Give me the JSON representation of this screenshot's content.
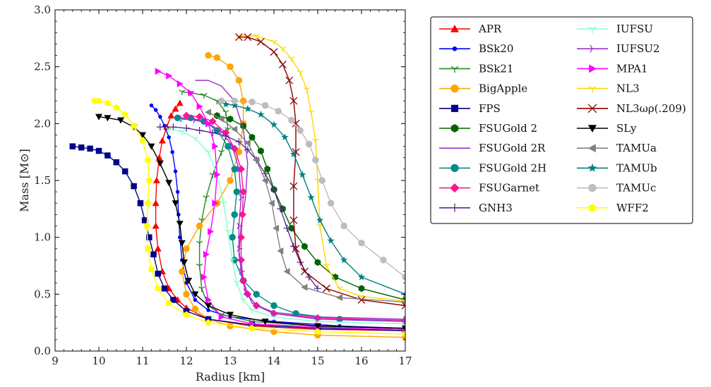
{
  "chart_data": {
    "type": "line",
    "title": "",
    "xlabel": "Radius [km]",
    "ylabel": "Mass [M⊙]",
    "xlim": [
      9,
      17
    ],
    "ylim": [
      0.0,
      3.0
    ],
    "xticks": [
      "9",
      "10",
      "11",
      "12",
      "13",
      "14",
      "15",
      "16",
      "17"
    ],
    "yticks": [
      "0.0",
      "0.5",
      "1.0",
      "1.5",
      "2.0",
      "2.5",
      "3.0"
    ],
    "legend_position": "outside-right",
    "series": [
      {
        "name": "APR",
        "color": "#ff0000",
        "marker": "triangle-up",
        "x": [
          17.0,
          15.0,
          13.5,
          12.5,
          12.0,
          11.8,
          11.6,
          11.45,
          11.35,
          11.3,
          11.3,
          11.32,
          11.38,
          11.45,
          11.55,
          11.65,
          11.75,
          11.85
        ],
        "y": [
          0.18,
          0.19,
          0.22,
          0.28,
          0.38,
          0.45,
          0.55,
          0.7,
          0.9,
          1.1,
          1.3,
          1.5,
          1.7,
          1.85,
          1.97,
          2.07,
          2.13,
          2.18
        ]
      },
      {
        "name": "BSk20",
        "color": "#0000ff",
        "marker": "circle-small",
        "x": [
          17.0,
          15.5,
          14.0,
          13.0,
          12.5,
          12.2,
          12.0,
          11.9,
          11.85,
          11.82,
          11.8,
          11.75,
          11.68,
          11.6,
          11.5,
          11.4,
          11.3,
          11.2
        ],
        "y": [
          0.2,
          0.22,
          0.26,
          0.3,
          0.36,
          0.45,
          0.6,
          0.8,
          1.0,
          1.2,
          1.4,
          1.58,
          1.75,
          1.88,
          1.98,
          2.06,
          2.12,
          2.16
        ]
      },
      {
        "name": "BSk21",
        "color": "#228b22",
        "marker": "tri-down",
        "x": [
          17.0,
          15.0,
          13.5,
          12.8,
          12.5,
          12.35,
          12.3,
          12.3,
          12.35,
          12.45,
          12.6,
          12.8,
          12.95,
          12.9,
          12.7,
          12.4,
          12.1,
          11.9
        ],
        "y": [
          0.2,
          0.22,
          0.26,
          0.32,
          0.4,
          0.55,
          0.75,
          0.95,
          1.15,
          1.35,
          1.55,
          1.75,
          1.95,
          2.1,
          2.2,
          2.25,
          2.27,
          2.28
        ]
      },
      {
        "name": "BigApple",
        "color": "#ffa500",
        "marker": "circle",
        "x": [
          17.0,
          15.0,
          14.0,
          13.0,
          12.5,
          12.2,
          12.0,
          11.9,
          12.0,
          12.3,
          12.7,
          13.0,
          13.2,
          13.3,
          13.3,
          13.2,
          13.0,
          12.7,
          12.5
        ],
        "y": [
          0.12,
          0.14,
          0.17,
          0.22,
          0.28,
          0.37,
          0.5,
          0.7,
          0.9,
          1.1,
          1.3,
          1.5,
          1.75,
          2.0,
          2.2,
          2.38,
          2.5,
          2.58,
          2.6
        ]
      },
      {
        "name": "FPS",
        "color": "#00008b",
        "marker": "square",
        "x": [
          17.0,
          15.0,
          13.5,
          12.5,
          12.0,
          11.7,
          11.5,
          11.35,
          11.25,
          11.15,
          11.05,
          10.95,
          10.8,
          10.6,
          10.4,
          10.2,
          10.0,
          9.8,
          9.6,
          9.4
        ],
        "y": [
          0.18,
          0.2,
          0.23,
          0.28,
          0.35,
          0.45,
          0.55,
          0.68,
          0.85,
          1.0,
          1.15,
          1.3,
          1.45,
          1.58,
          1.66,
          1.72,
          1.76,
          1.78,
          1.79,
          1.8
        ]
      },
      {
        "name": "FSUGold 2",
        "color": "#006400",
        "marker": "hexagon",
        "x": [
          17.0,
          16.0,
          15.4,
          15.0,
          14.7,
          14.4,
          14.2,
          14.0,
          13.85,
          13.7,
          13.5,
          13.3,
          13.0,
          12.7
        ],
        "y": [
          0.45,
          0.55,
          0.65,
          0.78,
          0.92,
          1.08,
          1.25,
          1.42,
          1.6,
          1.76,
          1.88,
          1.98,
          2.04,
          2.07
        ]
      },
      {
        "name": "FSUGold 2R",
        "color": "#9933cc",
        "marker": "none",
        "x": [
          17.0,
          15.0,
          14.0,
          13.5,
          13.3,
          13.2,
          13.25,
          13.35,
          13.4,
          13.3,
          13.1,
          12.8,
          12.5,
          12.2
        ],
        "y": [
          0.28,
          0.3,
          0.34,
          0.42,
          0.6,
          0.85,
          1.1,
          1.35,
          1.65,
          1.95,
          2.2,
          2.33,
          2.38,
          2.38
        ]
      },
      {
        "name": "FSUGold 2H",
        "color": "#008b8b",
        "marker": "circle",
        "x": [
          17.0,
          15.5,
          14.5,
          14.0,
          13.6,
          13.3,
          13.1,
          13.05,
          13.1,
          13.15,
          13.1,
          12.95,
          12.7,
          12.4,
          12.1,
          11.8
        ],
        "y": [
          0.26,
          0.28,
          0.33,
          0.4,
          0.5,
          0.62,
          0.8,
          1.0,
          1.2,
          1.4,
          1.6,
          1.8,
          1.94,
          2.02,
          2.05,
          2.05
        ]
      },
      {
        "name": "FSUGarnet",
        "color": "#ff1493",
        "marker": "diamond",
        "x": [
          17.0,
          15.0,
          14.0,
          13.6,
          13.4,
          13.3,
          13.25,
          13.25,
          13.28,
          13.3,
          13.25,
          13.1,
          12.9,
          12.6,
          12.3,
          12.0
        ],
        "y": [
          0.27,
          0.29,
          0.33,
          0.4,
          0.5,
          0.62,
          0.8,
          1.0,
          1.2,
          1.4,
          1.6,
          1.78,
          1.92,
          2.02,
          2.06,
          2.07
        ]
      },
      {
        "name": "GNH3",
        "color": "#5b2c8f",
        "marker": "plus",
        "x": [
          15.0,
          14.8,
          14.6,
          14.45,
          14.3,
          14.15,
          14.0,
          13.8,
          13.6,
          13.4,
          13.2,
          12.9,
          12.6,
          12.3,
          12.0,
          11.7,
          11.4
        ],
        "y": [
          0.55,
          0.65,
          0.78,
          0.92,
          1.08,
          1.25,
          1.42,
          1.56,
          1.68,
          1.77,
          1.84,
          1.89,
          1.92,
          1.94,
          1.96,
          1.97,
          1.97
        ]
      },
      {
        "name": "IUFSU",
        "color": "#7fffd4",
        "marker": "tri-down",
        "x": [
          17.0,
          15.0,
          14.0,
          13.5,
          13.3,
          13.15,
          13.05,
          12.95,
          12.85,
          12.7,
          12.5,
          12.2,
          11.9,
          11.6
        ],
        "y": [
          0.24,
          0.26,
          0.3,
          0.36,
          0.45,
          0.6,
          0.8,
          1.05,
          1.3,
          1.55,
          1.75,
          1.87,
          1.93,
          1.95
        ]
      },
      {
        "name": "IUFSU2",
        "color": "#9932cc",
        "marker": "tri-right",
        "x": [
          17.0,
          15.0,
          14.0,
          13.6,
          13.35,
          13.25,
          13.2,
          13.2,
          13.25,
          13.2,
          13.05,
          12.8,
          12.5,
          12.2,
          11.9
        ],
        "y": [
          0.26,
          0.28,
          0.33,
          0.4,
          0.52,
          0.7,
          0.9,
          1.1,
          1.35,
          1.6,
          1.8,
          1.93,
          2.0,
          2.03,
          2.04
        ]
      },
      {
        "name": "MPA1",
        "color": "#ff00ff",
        "marker": "triangle-right",
        "x": [
          17.0,
          15.0,
          13.5,
          12.8,
          12.5,
          12.4,
          12.45,
          12.55,
          12.65,
          12.7,
          12.65,
          12.5,
          12.3,
          12.1,
          11.85,
          11.6,
          11.35
        ],
        "y": [
          0.19,
          0.21,
          0.24,
          0.3,
          0.45,
          0.65,
          0.85,
          1.05,
          1.3,
          1.55,
          1.8,
          2.0,
          2.15,
          2.27,
          2.35,
          2.42,
          2.46
        ]
      },
      {
        "name": "NL3",
        "color": "#ffd700",
        "marker": "tri-down",
        "x": [
          17.0,
          16.0,
          15.5,
          15.2,
          15.05,
          15.0,
          14.95,
          14.85,
          14.75,
          14.6,
          14.4,
          14.2,
          14.0,
          13.6,
          13.2
        ],
        "y": [
          0.44,
          0.48,
          0.55,
          0.75,
          1.1,
          1.5,
          1.85,
          2.1,
          2.3,
          2.45,
          2.57,
          2.66,
          2.72,
          2.77,
          2.77
        ]
      },
      {
        "name": "NL3ωρ(.209)",
        "color": "#8b0000",
        "marker": "x",
        "x": [
          17.0,
          16.0,
          15.2,
          14.7,
          14.5,
          14.45,
          14.45,
          14.5,
          14.5,
          14.45,
          14.35,
          14.2,
          14.0,
          13.7,
          13.4,
          13.2
        ],
        "y": [
          0.4,
          0.45,
          0.55,
          0.7,
          0.9,
          1.15,
          1.45,
          1.75,
          2.0,
          2.2,
          2.38,
          2.52,
          2.63,
          2.72,
          2.76,
          2.76
        ]
      },
      {
        "name": "SLy",
        "color": "#000000",
        "marker": "triangle-down",
        "x": [
          17.0,
          15.0,
          13.8,
          13.0,
          12.5,
          12.2,
          12.05,
          11.95,
          11.9,
          11.85,
          11.75,
          11.6,
          11.4,
          11.2,
          11.0,
          10.8,
          10.5,
          10.2,
          10.0
        ],
        "y": [
          0.2,
          0.22,
          0.26,
          0.32,
          0.4,
          0.5,
          0.62,
          0.78,
          0.95,
          1.12,
          1.3,
          1.48,
          1.65,
          1.8,
          1.9,
          1.97,
          2.03,
          2.05,
          2.06
        ]
      },
      {
        "name": "TAMUa",
        "color": "#808080",
        "marker": "triangle-left",
        "x": [
          17.0,
          15.5,
          14.7,
          14.3,
          14.15,
          14.05,
          13.95,
          13.8,
          13.6,
          13.4,
          13.1,
          12.8,
          12.5
        ],
        "y": [
          0.43,
          0.47,
          0.56,
          0.7,
          0.88,
          1.08,
          1.3,
          1.5,
          1.68,
          1.83,
          1.95,
          2.04,
          2.1
        ]
      },
      {
        "name": "TAMUb",
        "color": "#008080",
        "marker": "star",
        "x": [
          17.0,
          16.0,
          15.6,
          15.3,
          15.05,
          14.85,
          14.65,
          14.45,
          14.25,
          14.0,
          13.7,
          13.4,
          13.1,
          12.9
        ],
        "y": [
          0.5,
          0.65,
          0.8,
          0.97,
          1.15,
          1.35,
          1.55,
          1.73,
          1.88,
          1.99,
          2.08,
          2.13,
          2.16,
          2.17
        ]
      },
      {
        "name": "TAMUc",
        "color": "#bdbdbd",
        "marker": "circle",
        "x": [
          17.0,
          16.5,
          16.0,
          15.6,
          15.3,
          15.1,
          14.95,
          14.8,
          14.6,
          14.4,
          14.1,
          13.8,
          13.5,
          13.1,
          12.8
        ],
        "y": [
          0.65,
          0.8,
          0.95,
          1.1,
          1.3,
          1.5,
          1.68,
          1.82,
          1.94,
          2.03,
          2.11,
          2.16,
          2.19,
          2.2,
          2.2
        ]
      },
      {
        "name": "WFF2",
        "color": "#ffff00",
        "marker": "pentagon",
        "x": [
          17.0,
          15.0,
          13.5,
          12.5,
          12.0,
          11.6,
          11.35,
          11.2,
          11.12,
          11.1,
          11.12,
          11.15,
          11.12,
          11.0,
          10.8,
          10.6,
          10.4,
          10.2,
          10.0,
          9.9
        ],
        "y": [
          0.15,
          0.17,
          0.2,
          0.25,
          0.32,
          0.42,
          0.55,
          0.72,
          0.9,
          1.1,
          1.3,
          1.5,
          1.68,
          1.85,
          1.98,
          2.08,
          2.14,
          2.18,
          2.2,
          2.2
        ]
      }
    ]
  }
}
